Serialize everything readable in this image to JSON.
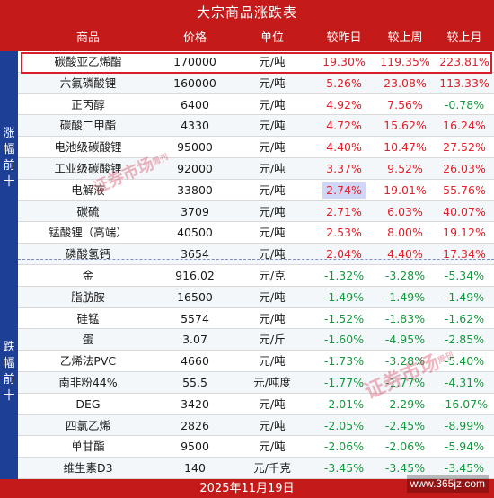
{
  "title": "大宗商品涨跌表",
  "headers": {
    "name": "商品",
    "price": "价格",
    "unit": "单位",
    "day": "较昨日",
    "week": "较上周",
    "month": "较上月"
  },
  "sections": {
    "top_gainers": "涨幅前十",
    "top_losers": "跌幅前十"
  },
  "colors": {
    "header_red": "#c41a1a",
    "side_blue": "#1e3f96",
    "up_red": "#e0202a",
    "down_green": "#119a3c"
  },
  "gainers": [
    {
      "name": "碳酸亚乙烯酯",
      "price": "170000",
      "unit": "元/吨",
      "day": "19.30%",
      "week": "119.35%",
      "month": "223.81%",
      "month_dir": "up"
    },
    {
      "name": "六氟磷酸锂",
      "price": "160000",
      "unit": "元/吨",
      "day": "5.26%",
      "week": "23.08%",
      "month": "113.33%",
      "month_dir": "up"
    },
    {
      "name": "正丙醇",
      "price": "6400",
      "unit": "元/吨",
      "day": "4.92%",
      "week": "7.56%",
      "month": "-0.78%",
      "month_dir": "down"
    },
    {
      "name": "碳酸二甲酯",
      "price": "4330",
      "unit": "元/吨",
      "day": "4.72%",
      "week": "15.62%",
      "month": "16.24%",
      "month_dir": "up"
    },
    {
      "name": "电池级碳酸锂",
      "price": "95000",
      "unit": "元/吨",
      "day": "4.40%",
      "week": "10.47%",
      "month": "27.52%",
      "month_dir": "up"
    },
    {
      "name": "工业级碳酸锂",
      "price": "92000",
      "unit": "元/吨",
      "day": "3.37%",
      "week": "9.52%",
      "month": "26.03%",
      "month_dir": "up"
    },
    {
      "name": "电解液",
      "price": "33800",
      "unit": "元/吨",
      "day": "2.74%",
      "week": "19.01%",
      "month": "55.76%",
      "month_dir": "up"
    },
    {
      "name": "碳硫",
      "price": "3709",
      "unit": "元/吨",
      "day": "2.71%",
      "week": "6.03%",
      "month": "40.07%",
      "month_dir": "up"
    },
    {
      "name": "锰酸锂（高端）",
      "price": "40500",
      "unit": "元/吨",
      "day": "2.53%",
      "week": "8.00%",
      "month": "19.12%",
      "month_dir": "up"
    },
    {
      "name": "磷酸氢钙",
      "price": "3654",
      "unit": "元/吨",
      "day": "2.04%",
      "week": "4.40%",
      "month": "17.34%",
      "month_dir": "up"
    }
  ],
  "losers": [
    {
      "name": "金",
      "price": "916.02",
      "unit": "元/克",
      "day": "-1.32%",
      "week": "-3.28%",
      "month": "-5.34%"
    },
    {
      "name": "脂肪胺",
      "price": "16500",
      "unit": "元/吨",
      "day": "-1.49%",
      "week": "-1.49%",
      "month": "-1.49%"
    },
    {
      "name": "硅锰",
      "price": "5574",
      "unit": "元/吨",
      "day": "-1.52%",
      "week": "-1.83%",
      "month": "-1.62%"
    },
    {
      "name": "蛋",
      "price": "3.07",
      "unit": "元/斤",
      "day": "-1.60%",
      "week": "-4.95%",
      "month": "-2.85%"
    },
    {
      "name": "乙烯法PVC",
      "price": "4660",
      "unit": "元/吨",
      "day": "-1.73%",
      "week": "-3.28%",
      "month": "-5.40%"
    },
    {
      "name": "南非粉44%",
      "price": "55.5",
      "unit": "元/吨度",
      "day": "-1.77%",
      "week": "-1.77%",
      "month": "-4.31%"
    },
    {
      "name": "DEG",
      "price": "3420",
      "unit": "元/吨",
      "day": "-2.01%",
      "week": "-2.29%",
      "month": "-16.07%"
    },
    {
      "name": "四氯乙烯",
      "price": "2826",
      "unit": "元/吨",
      "day": "-2.05%",
      "week": "-2.45%",
      "month": "-8.99%"
    },
    {
      "name": "单甘酯",
      "price": "9500",
      "unit": "元/吨",
      "day": "-2.06%",
      "week": "-2.06%",
      "month": "-5.94%"
    },
    {
      "name": "维生素D3",
      "price": "140",
      "unit": "元/千克",
      "day": "-3.45%",
      "week": "-3.45%",
      "month": "-3.45%"
    }
  ],
  "date": "2025年11月19日",
  "watermark": {
    "text": "证券市场",
    "sub": "周刊"
  },
  "site_watermark": "www.365jz.com"
}
